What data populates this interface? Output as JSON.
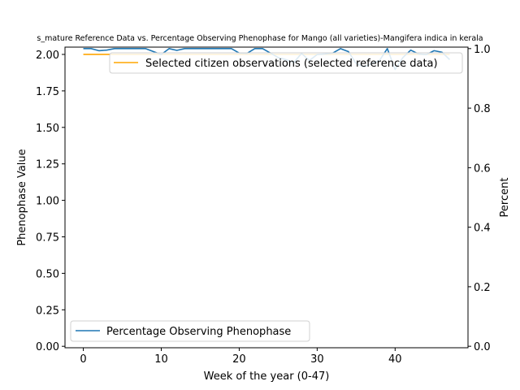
{
  "chart_data": {
    "type": "line",
    "title": "s_mature Reference Data vs. Percentage Observing Phenophase for Mango (all varieties)-Mangifera indica in kerala",
    "xlabel": "Week of the year (0-47)",
    "ylabel": "Phenophase Value",
    "y2label": "Percent",
    "xlim": [
      -2.35,
      49.35
    ],
    "ylim": [
      -0.01,
      2.05
    ],
    "y2lim": [
      -0.005,
      1.005
    ],
    "xticks": [
      0,
      10,
      20,
      30,
      40
    ],
    "yticks": [
      0.0,
      0.25,
      0.5,
      0.75,
      1.0,
      1.25,
      1.5,
      1.75,
      2.0
    ],
    "y2ticks": [
      0.0,
      0.2,
      0.4,
      0.6,
      0.8,
      1.0
    ],
    "grid": false,
    "series": [
      {
        "name": "Selected citizen observations (selected reference data)",
        "axis": "left",
        "color": "#ffa500",
        "legend": "upper-right",
        "x": [
          0,
          1,
          2,
          3,
          4,
          5,
          6,
          7,
          8,
          9,
          10,
          11,
          12,
          13,
          14,
          15,
          16,
          17,
          18,
          19,
          20,
          21,
          22,
          23,
          24,
          25,
          26,
          27,
          28,
          29,
          30,
          31,
          32,
          33,
          34,
          35,
          36,
          37,
          38,
          39,
          40,
          41,
          42,
          43,
          44,
          45,
          46,
          47
        ],
        "values": [
          2,
          2,
          2,
          2,
          2,
          2,
          2,
          2,
          2,
          2,
          2,
          2,
          2,
          2,
          2,
          2,
          2,
          2,
          2,
          2,
          2,
          2,
          2,
          2,
          2,
          2,
          2,
          2,
          2,
          2,
          2,
          2,
          2,
          2,
          2,
          2,
          2,
          2,
          2,
          2,
          2,
          2,
          2,
          2,
          2,
          2,
          2,
          2
        ]
      },
      {
        "name": "Percentage Observing Phenophase",
        "axis": "right",
        "color": "#1f77b4",
        "legend": "lower-left",
        "x": [
          0,
          1,
          2,
          3,
          4,
          5,
          6,
          7,
          8,
          9,
          10,
          11,
          12,
          13,
          14,
          15,
          16,
          17,
          18,
          19,
          20,
          21,
          22,
          23,
          24,
          25,
          26,
          27,
          28,
          29,
          30,
          31,
          32,
          33,
          34,
          35,
          36,
          37,
          38,
          39,
          40,
          41,
          42,
          43,
          44,
          45,
          46,
          47
        ],
        "values": [
          1.0,
          1.0,
          0.993,
          0.995,
          1.0,
          1.0,
          1.0,
          1.0,
          1.0,
          0.99,
          0.98,
          1.0,
          0.994,
          1.0,
          1.0,
          1.0,
          1.0,
          1.0,
          1.0,
          1.0,
          0.985,
          0.984,
          1.0,
          1.0,
          0.985,
          0.97,
          0.963,
          0.953,
          0.984,
          0.96,
          0.98,
          0.982,
          0.985,
          1.0,
          0.99,
          0.95,
          0.938,
          0.95,
          0.96,
          1.0,
          0.93,
          0.97,
          0.995,
          0.982,
          0.98,
          0.993,
          0.988,
          0.963
        ]
      }
    ]
  }
}
